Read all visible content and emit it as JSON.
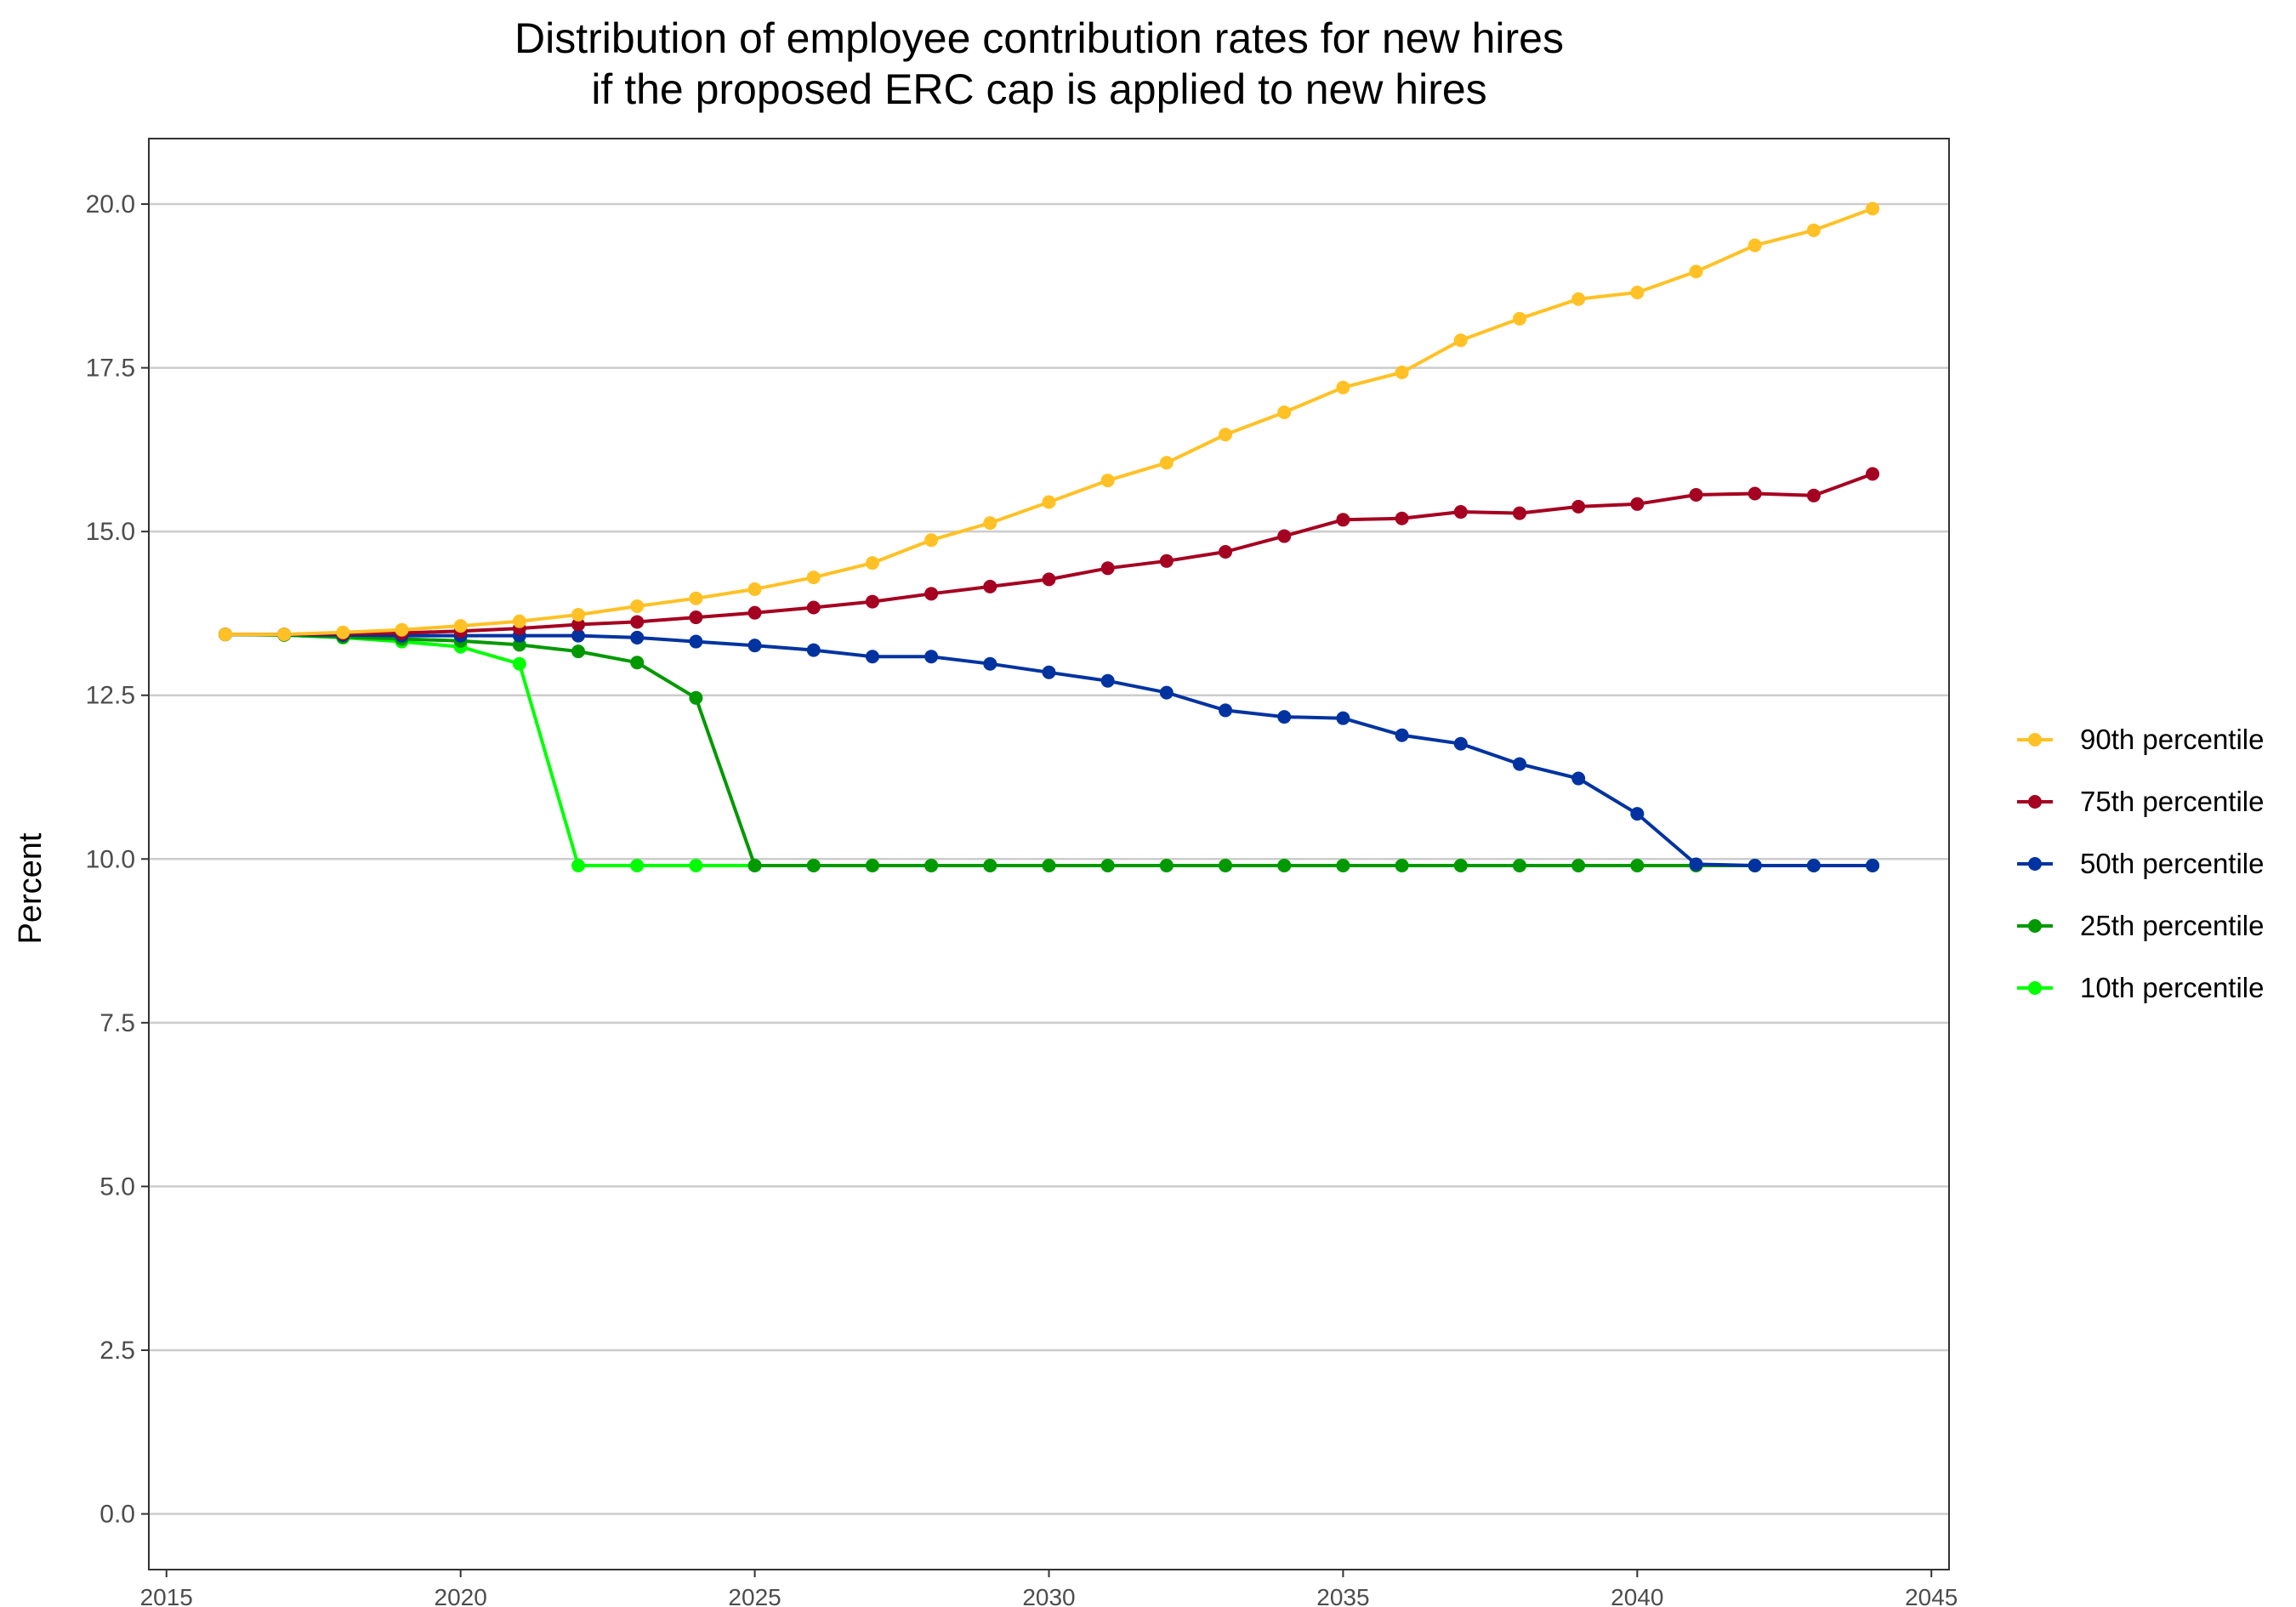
{
  "chart_data": {
    "type": "line",
    "title": "Distribution of employee contribution rates for new hires",
    "subtitle": "if the proposed ERC cap is applied to new hires",
    "xlabel": "",
    "ylabel": "Percent",
    "xlim": [
      2014.7,
      2045.3
    ],
    "ylim": [
      -0.85,
      21.0
    ],
    "x_ticks": [
      2015,
      2020,
      2025,
      2030,
      2035,
      2040,
      2045
    ],
    "y_ticks": [
      0,
      2.5,
      5,
      7.5,
      10,
      12.5,
      15,
      17.5,
      20
    ],
    "y_tick_labels": [
      "0.0",
      "2.5",
      "5.0",
      "7.5",
      "10.0",
      "12.5",
      "15.0",
      "17.5",
      "20.0"
    ],
    "grid": "horizontal",
    "legend_position": "right",
    "series": [
      {
        "name": "10th percentile",
        "color": "#00ff00",
        "x": [
          2016,
          2017,
          2018,
          2019,
          2020,
          2021,
          2022,
          2023,
          2024,
          2025,
          2026,
          2027,
          2028,
          2029,
          2030,
          2031,
          2032,
          2033,
          2034,
          2035,
          2036,
          2037,
          2038,
          2039,
          2040,
          2041,
          2042,
          2043,
          2044
        ],
        "values": [
          13.43,
          13.42,
          13.38,
          13.32,
          13.24,
          12.98,
          9.9,
          9.9,
          9.9,
          9.9,
          9.9,
          9.9,
          9.9,
          9.9,
          9.9,
          9.9,
          9.9,
          9.9,
          9.9,
          9.9,
          9.9,
          9.9,
          9.9,
          9.9,
          9.9,
          9.9,
          9.9,
          9.9,
          9.9
        ]
      },
      {
        "name": "25th percentile",
        "color": "#009900",
        "x": [
          2016,
          2017,
          2018,
          2019,
          2020,
          2021,
          2022,
          2023,
          2024,
          2025,
          2026,
          2027,
          2028,
          2029,
          2030,
          2031,
          2032,
          2033,
          2034,
          2035,
          2036,
          2037,
          2038,
          2039,
          2040,
          2041,
          2042,
          2043,
          2044
        ],
        "values": [
          13.43,
          13.42,
          13.39,
          13.36,
          13.33,
          13.27,
          13.17,
          13.0,
          12.46,
          9.9,
          9.9,
          9.9,
          9.9,
          9.9,
          9.9,
          9.9,
          9.9,
          9.9,
          9.9,
          9.9,
          9.9,
          9.9,
          9.9,
          9.9,
          9.9,
          9.9,
          9.9,
          9.9,
          9.9
        ]
      },
      {
        "name": "50th percentile",
        "color": "#0033a0",
        "x": [
          2016,
          2017,
          2018,
          2019,
          2020,
          2021,
          2022,
          2023,
          2024,
          2025,
          2026,
          2027,
          2028,
          2029,
          2030,
          2031,
          2032,
          2033,
          2034,
          2035,
          2036,
          2037,
          2038,
          2039,
          2040,
          2041,
          2042,
          2043,
          2044
        ],
        "values": [
          13.43,
          13.43,
          13.42,
          13.41,
          13.41,
          13.41,
          13.41,
          13.38,
          13.32,
          13.26,
          13.19,
          13.09,
          13.09,
          12.98,
          12.85,
          12.72,
          12.54,
          12.27,
          12.17,
          12.15,
          11.89,
          11.76,
          11.45,
          11.23,
          10.69,
          9.92,
          9.9,
          9.9,
          9.9
        ]
      },
      {
        "name": "75th percentile",
        "color": "#a50021",
        "x": [
          2016,
          2017,
          2018,
          2019,
          2020,
          2021,
          2022,
          2023,
          2024,
          2025,
          2026,
          2027,
          2028,
          2029,
          2030,
          2031,
          2032,
          2033,
          2034,
          2035,
          2036,
          2037,
          2038,
          2039,
          2040,
          2041,
          2042,
          2043,
          2044
        ],
        "values": [
          13.43,
          13.43,
          13.44,
          13.45,
          13.48,
          13.52,
          13.58,
          13.62,
          13.69,
          13.76,
          13.84,
          13.93,
          14.05,
          14.16,
          14.27,
          14.44,
          14.55,
          14.69,
          14.93,
          15.18,
          15.2,
          15.3,
          15.28,
          15.38,
          15.42,
          15.56,
          15.58,
          15.55,
          15.88
        ]
      },
      {
        "name": "90th percentile",
        "color": "#ffc125",
        "x": [
          2016,
          2017,
          2018,
          2019,
          2020,
          2021,
          2022,
          2023,
          2024,
          2025,
          2026,
          2027,
          2028,
          2029,
          2030,
          2031,
          2032,
          2033,
          2034,
          2035,
          2036,
          2037,
          2038,
          2039,
          2040,
          2041,
          2042,
          2043,
          2044
        ],
        "values": [
          13.43,
          13.43,
          13.46,
          13.5,
          13.56,
          13.63,
          13.73,
          13.86,
          13.98,
          14.12,
          14.3,
          14.52,
          14.87,
          15.13,
          15.45,
          15.78,
          16.05,
          16.48,
          16.82,
          17.2,
          17.43,
          17.92,
          18.25,
          18.55,
          18.65,
          18.97,
          19.37,
          19.6,
          19.93
        ]
      }
    ],
    "legend_order": [
      "90th percentile",
      "75th percentile",
      "50th percentile",
      "25th percentile",
      "10th percentile"
    ]
  }
}
